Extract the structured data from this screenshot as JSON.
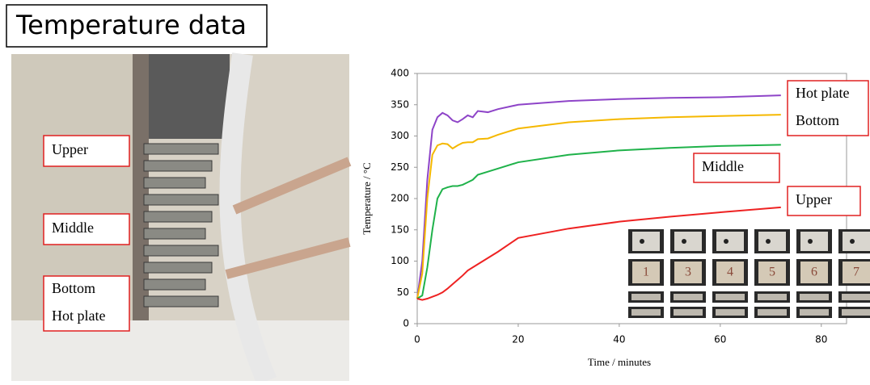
{
  "header": {
    "title": "Temperature data"
  },
  "photo": {
    "labels": [
      "Upper",
      "Middle",
      "Bottom",
      "Hot plate"
    ]
  },
  "inset": {
    "labels": [
      "1",
      "3",
      "4",
      "5",
      "6",
      "7"
    ]
  },
  "chart_data": {
    "type": "line",
    "x_label": "Time / minutes",
    "y_label": "Temperature / °C",
    "x": [
      0,
      1,
      2,
      3,
      4,
      5,
      6,
      7,
      8,
      9,
      10,
      11,
      12,
      14,
      16,
      20,
      30,
      40,
      50,
      60,
      72
    ],
    "series": [
      {
        "name": "Hot plate",
        "color": "#8e44c8",
        "values": [
          40,
          100,
          230,
          310,
          330,
          337,
          333,
          325,
          322,
          327,
          333,
          330,
          340,
          338,
          343,
          350,
          356,
          359,
          361,
          362,
          365
        ]
      },
      {
        "name": "Bottom",
        "color": "#f5b800",
        "values": [
          40,
          80,
          200,
          270,
          285,
          288,
          287,
          280,
          285,
          289,
          290,
          290,
          295,
          296,
          302,
          312,
          322,
          327,
          330,
          332,
          334
        ]
      },
      {
        "name": "Middle",
        "color": "#1fb24a",
        "values": [
          40,
          45,
          90,
          150,
          200,
          215,
          218,
          220,
          220,
          222,
          226,
          230,
          238,
          243,
          248,
          258,
          270,
          277,
          281,
          284,
          286
        ]
      },
      {
        "name": "Upper",
        "color": "#ee2222",
        "values": [
          40,
          38,
          40,
          43,
          46,
          50,
          56,
          63,
          70,
          77,
          85,
          90,
          95,
          105,
          115,
          137,
          152,
          163,
          171,
          178,
          186
        ]
      }
    ],
    "xlim": [
      0,
      85
    ],
    "xticks": [
      0,
      20,
      40,
      60,
      80
    ],
    "ylim": [
      0,
      400
    ],
    "yticks": [
      0,
      50,
      100,
      150,
      200,
      250,
      300,
      350,
      400
    ]
  }
}
